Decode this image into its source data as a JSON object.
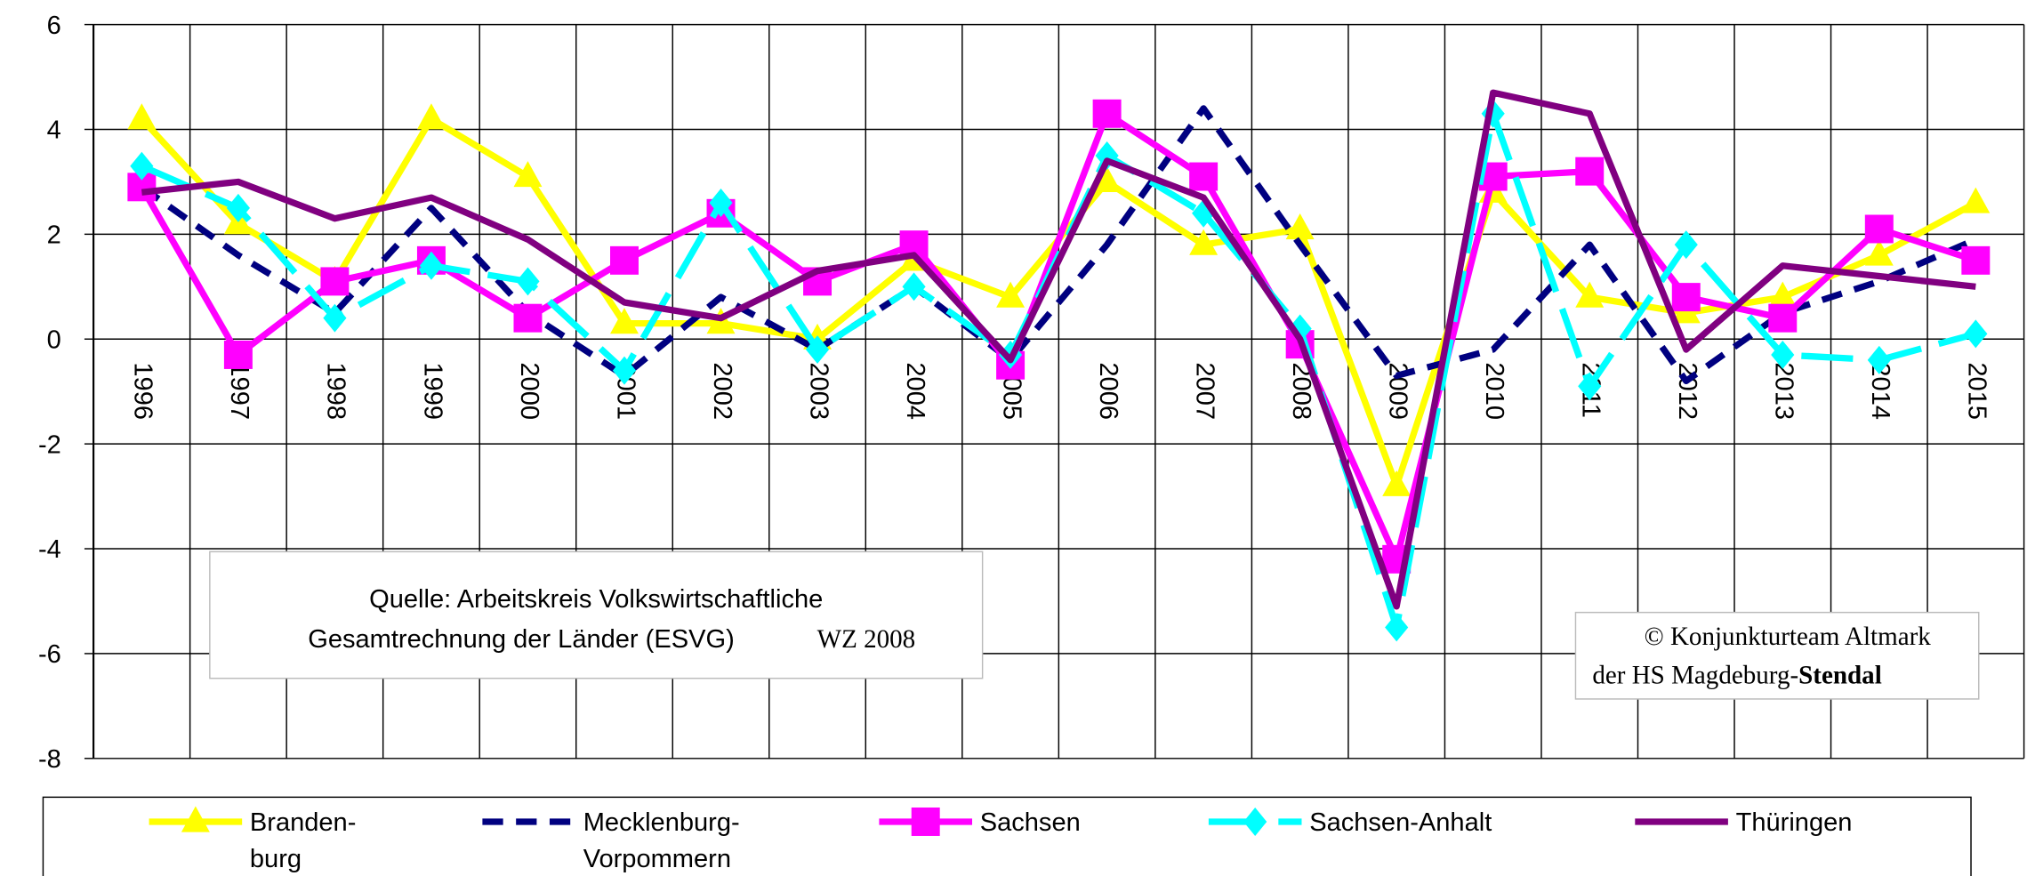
{
  "chart_data": {
    "type": "line",
    "categories": [
      "1996",
      "1997",
      "1998",
      "1999",
      "2000",
      "2001",
      "2002",
      "2003",
      "2004",
      "2005",
      "2006",
      "2007",
      "2008",
      "2009",
      "2010",
      "2011",
      "2012",
      "2013",
      "2014",
      "2015"
    ],
    "ylim": [
      -8,
      6
    ],
    "yticks": [
      -8,
      -6,
      -4,
      -2,
      0,
      2,
      4,
      6
    ],
    "grid": true,
    "legend": "bottom",
    "series": [
      {
        "name": "Branden-\nburg",
        "color": "#ffff00",
        "marker": "triangle",
        "dash": "solid",
        "values": [
          4.2,
          2.2,
          1.1,
          4.2,
          3.1,
          0.3,
          0.3,
          0.0,
          1.5,
          0.8,
          3.0,
          1.8,
          2.1,
          -2.8,
          2.8,
          0.8,
          0.5,
          0.8,
          1.6,
          2.6
        ]
      },
      {
        "name": "Mecklenburg-\nVorpommern",
        "color": "#000080",
        "marker": "none",
        "dash": "dashed",
        "values": [
          2.9,
          1.6,
          0.5,
          2.5,
          0.5,
          -0.7,
          0.8,
          -0.2,
          1.0,
          -0.4,
          1.8,
          4.4,
          1.8,
          -0.7,
          -0.2,
          1.8,
          -0.8,
          0.5,
          1.1,
          1.9
        ]
      },
      {
        "name": "Sachsen",
        "color": "#ff00ff",
        "marker": "square",
        "dash": "solid",
        "values": [
          2.9,
          -0.3,
          1.1,
          1.5,
          0.4,
          1.5,
          2.4,
          1.1,
          1.8,
          -0.5,
          4.3,
          3.1,
          -0.1,
          -4.2,
          3.1,
          3.2,
          0.8,
          0.4,
          2.1,
          1.5
        ]
      },
      {
        "name": "Sachsen-Anhalt",
        "color": "#00ffff",
        "marker": "diamond",
        "dash": "longdash",
        "values": [
          3.3,
          2.5,
          0.4,
          1.4,
          1.1,
          -0.6,
          2.6,
          -0.2,
          1.0,
          -0.3,
          3.5,
          2.4,
          0.2,
          -5.5,
          4.3,
          -0.9,
          1.8,
          -0.3,
          -0.4,
          0.1
        ]
      },
      {
        "name": "Thüringen",
        "color": "#800080",
        "marker": "none",
        "dash": "solid",
        "values": [
          2.8,
          3.0,
          2.3,
          2.7,
          1.9,
          0.7,
          0.4,
          1.3,
          1.6,
          -0.4,
          3.4,
          2.7,
          0.0,
          -5.1,
          4.7,
          4.3,
          -0.2,
          1.4,
          1.2,
          1.0
        ]
      }
    ],
    "source": {
      "line1": "Quelle: Arbeitskreis Volkswirtschaftliche",
      "line2": "Gesamtrechnung der Länder (ESVG)",
      "note": "WZ 2008"
    },
    "copyright": {
      "line1": "© Konjunkturteam Altmark",
      "line2": "der HS Magdeburg-",
      "line2_bold": "Stendal"
    }
  }
}
